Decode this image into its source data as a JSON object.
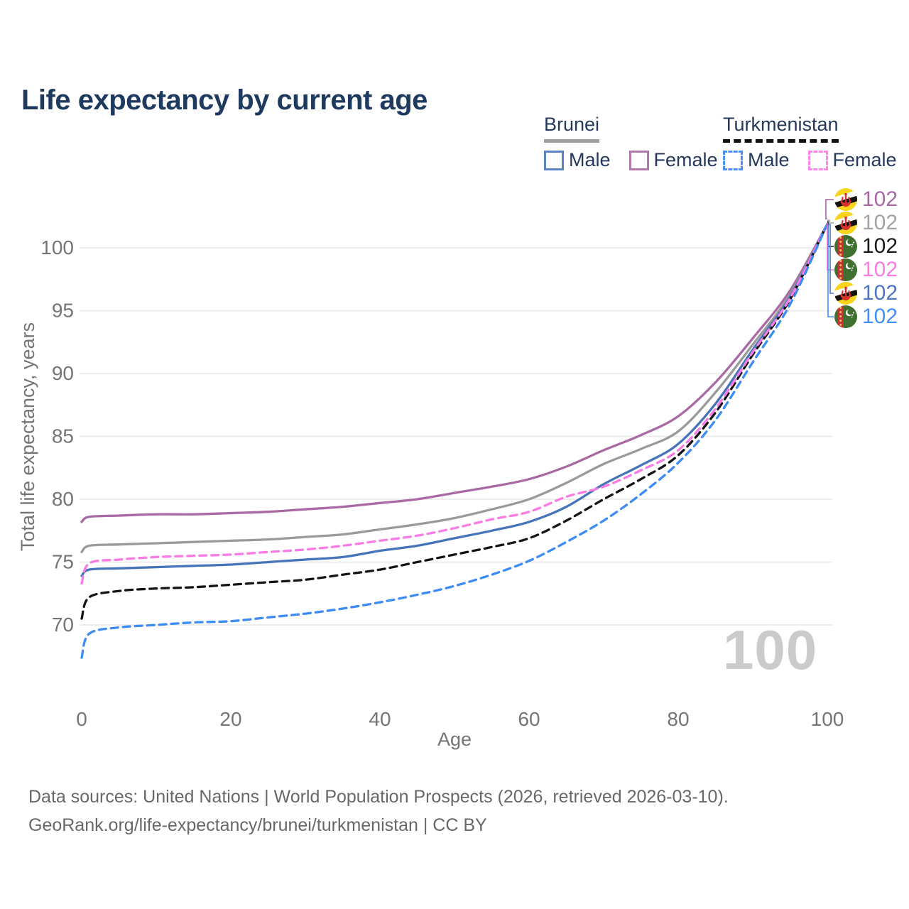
{
  "title": "Life expectancy by current age",
  "legend": {
    "brunei": {
      "label": "Brunei",
      "male": "Male",
      "female": "Female"
    },
    "turkmenistan": {
      "label": "Turkmenistan",
      "male": "Male",
      "female": "Female"
    }
  },
  "watermark": "100",
  "footer": {
    "line1": "Data sources: United Nations | World Population Prospects (2026, retrieved 2026-03-10).",
    "line2": "GeoRank.org/life-expectancy/brunei/turkmenistan | CC BY"
  },
  "colors": {
    "title_text": "#1e3a5f",
    "axis_text": "#757575",
    "gridline": "#e8e8e8",
    "brunei_female": "#a869a5",
    "brunei_total": "#9a9a9a",
    "brunei_male": "#4574ba",
    "turkmenistan_female": "#fb7be4",
    "turkmenistan_total": "#141414",
    "turkmenistan_male": "#3d8bf5",
    "watermark": "#cbcbcb"
  },
  "end_labels": [
    {
      "flag": "brunei",
      "value": "102",
      "color": "#a967a6",
      "series": "Brunei Female"
    },
    {
      "flag": "brunei",
      "value": "102",
      "color": "#a3a3a3",
      "series": "Brunei Both sexes"
    },
    {
      "flag": "turkmenistan",
      "value": "102",
      "color": "#1a1a1a",
      "series": "Turkmenistan Both sexes"
    },
    {
      "flag": "turkmenistan",
      "value": "102",
      "color": "#fb7be4",
      "series": "Turkmenistan Female"
    },
    {
      "flag": "brunei",
      "value": "102",
      "color": "#4d77c4",
      "series": "Brunei Male"
    },
    {
      "flag": "turkmenistan",
      "value": "102",
      "color": "#4190f7",
      "series": "Turkmenistan Male"
    }
  ],
  "chart_data": {
    "type": "line",
    "title": "Life expectancy by current age",
    "xlabel": "Age",
    "ylabel": "Total life expectancy, years",
    "xlim": [
      0,
      100
    ],
    "ylim": [
      66.5,
      103
    ],
    "x_ticks": [
      0,
      20,
      40,
      60,
      80,
      100
    ],
    "y_ticks": [
      70,
      75,
      80,
      85,
      90,
      95,
      100
    ],
    "grid": "horizontal",
    "legend_position": "top-right",
    "x": [
      0,
      1,
      5,
      10,
      15,
      20,
      25,
      30,
      35,
      40,
      45,
      50,
      55,
      60,
      65,
      70,
      75,
      80,
      85,
      90,
      95,
      100
    ],
    "series": [
      {
        "name": "Brunei Female",
        "country": "Brunei",
        "sex": "Female",
        "style": "solid",
        "color": "#a869a5",
        "values": [
          78.2,
          78.6,
          78.7,
          78.8,
          78.8,
          78.9,
          79.0,
          79.2,
          79.4,
          79.7,
          80.0,
          80.5,
          81.0,
          81.6,
          82.6,
          83.9,
          85.1,
          86.6,
          89.3,
          92.8,
          96.6,
          101.9
        ]
      },
      {
        "name": "Brunei Both sexes",
        "country": "Brunei",
        "sex": "Both",
        "style": "solid",
        "color": "#9a9a9a",
        "values": [
          75.8,
          76.3,
          76.4,
          76.5,
          76.6,
          76.7,
          76.8,
          77.0,
          77.2,
          77.6,
          78.0,
          78.5,
          79.2,
          80.0,
          81.3,
          82.8,
          84.0,
          85.4,
          88.5,
          92.3,
          96.3,
          101.9
        ]
      },
      {
        "name": "Brunei Male",
        "country": "Brunei",
        "sex": "Male",
        "style": "solid",
        "color": "#4574ba",
        "values": [
          73.9,
          74.4,
          74.5,
          74.6,
          74.7,
          74.8,
          75.0,
          75.2,
          75.4,
          75.9,
          76.3,
          76.9,
          77.5,
          78.2,
          79.4,
          81.2,
          82.7,
          84.4,
          87.6,
          91.9,
          96.1,
          101.9
        ]
      },
      {
        "name": "Turkmenistan Both sexes",
        "country": "Turkmenistan",
        "sex": "Both",
        "style": "dashed",
        "color": "#141414",
        "values": [
          70.5,
          72.2,
          72.7,
          72.9,
          73.0,
          73.2,
          73.4,
          73.6,
          74.0,
          74.4,
          75.0,
          75.6,
          76.2,
          76.9,
          78.3,
          80.0,
          81.6,
          83.5,
          86.9,
          91.5,
          95.9,
          101.9
        ]
      },
      {
        "name": "Turkmenistan Female",
        "country": "Turkmenistan",
        "sex": "Female",
        "style": "dashed",
        "color": "#fb7be4",
        "values": [
          73.3,
          74.9,
          75.2,
          75.4,
          75.5,
          75.6,
          75.8,
          76.0,
          76.3,
          76.7,
          77.1,
          77.7,
          78.4,
          79.0,
          80.2,
          81.0,
          82.3,
          83.9,
          87.2,
          91.7,
          96.0,
          101.9
        ]
      },
      {
        "name": "Turkmenistan Male",
        "country": "Turkmenistan",
        "sex": "Male",
        "style": "dashed",
        "color": "#3d8bf5",
        "values": [
          67.4,
          69.3,
          69.8,
          70.0,
          70.2,
          70.3,
          70.6,
          70.9,
          71.3,
          71.8,
          72.4,
          73.1,
          74.0,
          75.1,
          76.6,
          78.3,
          80.4,
          82.9,
          86.3,
          90.9,
          95.5,
          101.9
        ]
      }
    ]
  }
}
